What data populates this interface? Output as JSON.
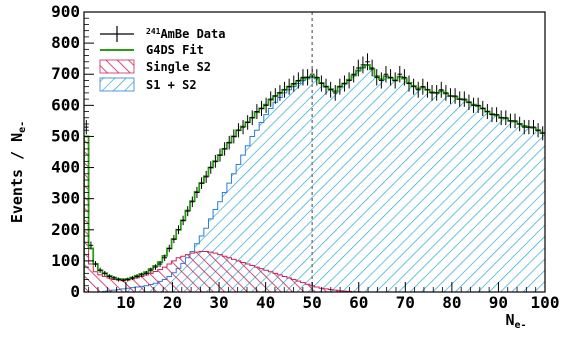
{
  "chart_data": {
    "type": "histogram",
    "xlabel": "N",
    "xlabel_sub": "e-",
    "ylabel": "Events / N",
    "ylabel_sub": "e-",
    "xlim": [
      1,
      100
    ],
    "ylim": [
      0,
      900
    ],
    "x_ticks": [
      10,
      20,
      30,
      40,
      50,
      60,
      70,
      80,
      90,
      100
    ],
    "y_ticks": [
      0,
      100,
      200,
      300,
      400,
      500,
      600,
      700,
      800,
      900
    ],
    "vertical_line_x": 50,
    "legend_position": "top-left",
    "legend": [
      {
        "sup": "241",
        "text": "AmBe Data",
        "style": "data"
      },
      {
        "text": "G4DS Fit",
        "style": "fit"
      },
      {
        "text": "Single S2",
        "style": "single"
      },
      {
        "text": "S1 + S2",
        "style": "s1s2"
      }
    ],
    "x": [
      1,
      2,
      3,
      4,
      5,
      6,
      7,
      8,
      9,
      10,
      11,
      12,
      13,
      14,
      15,
      16,
      17,
      18,
      19,
      20,
      21,
      22,
      23,
      24,
      25,
      26,
      27,
      28,
      29,
      30,
      31,
      32,
      33,
      34,
      35,
      36,
      37,
      38,
      39,
      40,
      41,
      42,
      43,
      44,
      45,
      46,
      47,
      48,
      49,
      50,
      51,
      52,
      53,
      54,
      55,
      56,
      57,
      58,
      59,
      60,
      61,
      62,
      63,
      64,
      65,
      66,
      67,
      68,
      69,
      70,
      71,
      72,
      73,
      74,
      75,
      76,
      77,
      78,
      79,
      80,
      81,
      82,
      83,
      84,
      85,
      86,
      87,
      88,
      89,
      90,
      91,
      92,
      93,
      94,
      95,
      96,
      97,
      98,
      99,
      100
    ],
    "series": [
      {
        "name": "241AmBe Data",
        "values": [
          530,
          150,
          90,
          70,
          60,
          50,
          45,
          40,
          38,
          40,
          45,
          50,
          55,
          60,
          70,
          80,
          90,
          110,
          140,
          170,
          200,
          230,
          260,
          290,
          320,
          350,
          370,
          400,
          420,
          440,
          460,
          480,
          500,
          520,
          530,
          545,
          560,
          580,
          590,
          600,
          620,
          630,
          640,
          650,
          660,
          670,
          680,
          690,
          690,
          700,
          690,
          670,
          660,
          650,
          640,
          660,
          670,
          680,
          700,
          720,
          730,
          740,
          720,
          690,
          680,
          700,
          690,
          680,
          700,
          690,
          670,
          660,
          650,
          660,
          650,
          640,
          640,
          650,
          640,
          630,
          630,
          620,
          620,
          610,
          600,
          600,
          590,
          580,
          570,
          570,
          560,
          560,
          550,
          550,
          540,
          530,
          530,
          530,
          520,
          510
        ]
      },
      {
        "name": "G4DS Fit",
        "values": [
          500,
          140,
          90,
          70,
          60,
          52,
          46,
          42,
          40,
          42,
          46,
          52,
          58,
          64,
          74,
          84,
          96,
          116,
          140,
          170,
          200,
          230,
          262,
          292,
          322,
          350,
          372,
          400,
          420,
          440,
          460,
          480,
          500,
          520,
          532,
          546,
          560,
          578,
          590,
          602,
          618,
          630,
          640,
          650,
          660,
          668,
          678,
          686,
          690,
          694,
          688,
          672,
          660,
          652,
          646,
          660,
          670,
          682,
          696,
          712,
          722,
          730,
          716,
          694,
          684,
          694,
          688,
          680,
          692,
          686,
          672,
          662,
          654,
          658,
          650,
          642,
          640,
          646,
          638,
          630,
          628,
          620,
          618,
          610,
          602,
          598,
          590,
          580,
          572,
          568,
          560,
          558,
          550,
          548,
          540,
          534,
          530,
          528,
          520,
          512
        ]
      },
      {
        "name": "Single S2",
        "values": [
          500,
          90,
          65,
          55,
          50,
          45,
          40,
          38,
          36,
          38,
          42,
          46,
          50,
          55,
          60,
          66,
          72,
          80,
          90,
          100,
          110,
          115,
          120,
          125,
          128,
          130,
          130,
          128,
          125,
          120,
          115,
          110,
          105,
          100,
          95,
          90,
          85,
          80,
          75,
          70,
          65,
          60,
          55,
          50,
          45,
          40,
          35,
          30,
          25,
          20,
          16,
          12,
          10,
          8,
          6,
          4,
          3,
          2,
          1,
          1,
          0,
          0,
          0,
          0,
          0,
          0,
          0,
          0,
          0,
          0,
          0,
          0,
          0,
          0,
          0,
          0,
          0,
          0,
          0,
          0,
          0,
          0,
          0,
          0,
          0,
          0,
          0,
          0,
          0,
          0,
          0,
          0,
          0,
          0,
          0,
          0,
          0,
          0,
          0,
          0
        ]
      },
      {
        "name": "S1 + S2",
        "values": [
          0,
          0,
          0,
          0,
          2,
          4,
          6,
          8,
          10,
          12,
          14,
          16,
          18,
          20,
          24,
          28,
          34,
          40,
          50,
          62,
          76,
          92,
          110,
          130,
          155,
          180,
          205,
          235,
          265,
          290,
          320,
          350,
          380,
          410,
          440,
          470,
          500,
          520,
          545,
          570,
          590,
          610,
          625,
          640,
          650,
          660,
          670,
          680,
          685,
          690,
          685,
          670,
          660,
          650,
          645,
          660,
          670,
          680,
          695,
          710,
          720,
          728,
          715,
          693,
          683,
          694,
          688,
          680,
          692,
          686,
          672,
          662,
          654,
          658,
          650,
          642,
          640,
          646,
          638,
          630,
          628,
          620,
          618,
          610,
          602,
          598,
          590,
          580,
          572,
          568,
          560,
          558,
          550,
          548,
          540,
          534,
          530,
          528,
          520,
          512
        ]
      }
    ]
  }
}
